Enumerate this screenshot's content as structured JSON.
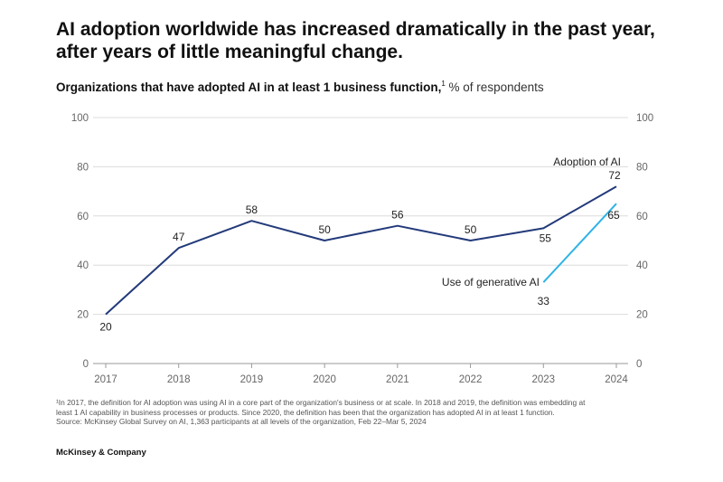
{
  "headline": "AI adoption worldwide has increased dramatically in the past year, after years of little meaningful change.",
  "subtitle": {
    "main": "Organizations that have adopted AI in at least 1 business function,",
    "footnote_marker": "1",
    "unit": "% of respondents"
  },
  "chart_data": {
    "type": "line",
    "x": [
      "2017",
      "2018",
      "2019",
      "2020",
      "2021",
      "2022",
      "2023",
      "2024"
    ],
    "ylim": [
      0,
      100
    ],
    "yticks": [
      "0",
      "20",
      "40",
      "60",
      "80",
      "100"
    ],
    "grid": true,
    "series": [
      {
        "name": "Adoption of AI",
        "color": "#233a7a",
        "x": [
          "2017",
          "2018",
          "2019",
          "2020",
          "2021",
          "2022",
          "2023",
          "2024"
        ],
        "values": [
          20,
          47,
          58,
          50,
          56,
          50,
          55,
          72
        ],
        "labels": [
          "20",
          "47",
          "58",
          "50",
          "56",
          "50",
          "55",
          "72"
        ]
      },
      {
        "name": "Use of generative AI",
        "color": "#2fb3e6",
        "x": [
          "2023",
          "2024"
        ],
        "values": [
          33,
          65
        ],
        "labels": [
          "33",
          "65"
        ]
      }
    ]
  },
  "footnotes": {
    "line1": "¹In 2017, the definition for AI adoption was using AI in a core part of the organization's business or at scale. In 2018 and 2019, the definition was embedding at",
    "line2": "least 1 AI capability in business processes or products. Since 2020, the definition has been that the organization has adopted AI in at least 1 function.",
    "line3": "Source: McKinsey Global Survey on AI, 1,363 participants at all levels of the organization, Feb 22–Mar 5, 2024"
  },
  "brand": "McKinsey & Company"
}
